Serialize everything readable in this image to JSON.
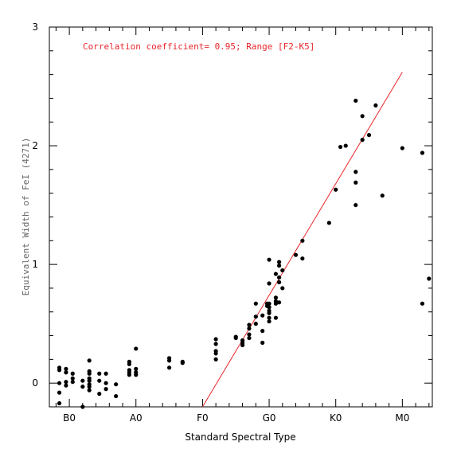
{
  "chart_data": {
    "type": "scatter",
    "title": "",
    "xlabel": "Standard Spectral Type",
    "ylabel": "Equivalent Width of FeI (4271)",
    "annotation": "Correlation coefficient= 0.95; Range [F2-K5]",
    "x_ticks": [
      {
        "value": 10,
        "label": "B0"
      },
      {
        "value": 20,
        "label": "A0"
      },
      {
        "value": 30,
        "label": "F0"
      },
      {
        "value": 40,
        "label": "G0"
      },
      {
        "value": 50,
        "label": "K0"
      },
      {
        "value": 60,
        "label": "M0"
      }
    ],
    "y_ticks": [
      {
        "value": 0,
        "label": "0"
      },
      {
        "value": 1,
        "label": "1"
      },
      {
        "value": 2,
        "label": "2"
      },
      {
        "value": 3,
        "label": "3"
      }
    ],
    "xlim": [
      7.0,
      64.5
    ],
    "ylim": [
      -0.2,
      3.0
    ],
    "grid": false,
    "colors": {
      "points": "#000000",
      "fit": "#e8262b",
      "annotation": "#e8262b"
    },
    "fit_line": {
      "x": [
        30.0,
        60.0
      ],
      "y": [
        -0.2,
        2.62
      ]
    },
    "points": [
      {
        "x": 8.5,
        "y": 0.13
      },
      {
        "x": 8.5,
        "y": 0.11
      },
      {
        "x": 8.5,
        "y": 0.0
      },
      {
        "x": 8.5,
        "y": -0.08
      },
      {
        "x": 8.5,
        "y": -0.17
      },
      {
        "x": 9.5,
        "y": 0.12
      },
      {
        "x": 9.5,
        "y": 0.09
      },
      {
        "x": 9.5,
        "y": 0.01
      },
      {
        "x": 9.5,
        "y": -0.02
      },
      {
        "x": 10.5,
        "y": 0.08
      },
      {
        "x": 10.5,
        "y": 0.04
      },
      {
        "x": 10.5,
        "y": 0.01
      },
      {
        "x": 12.0,
        "y": 0.02
      },
      {
        "x": 12.0,
        "y": -0.03
      },
      {
        "x": 12.0,
        "y": -0.2
      },
      {
        "x": 13.0,
        "y": 0.19
      },
      {
        "x": 13.0,
        "y": 0.1
      },
      {
        "x": 13.0,
        "y": 0.08
      },
      {
        "x": 13.0,
        "y": 0.04
      },
      {
        "x": 13.0,
        "y": 0.02
      },
      {
        "x": 13.0,
        "y": -0.01
      },
      {
        "x": 13.0,
        "y": -0.03
      },
      {
        "x": 13.0,
        "y": -0.06
      },
      {
        "x": 14.5,
        "y": 0.08
      },
      {
        "x": 14.5,
        "y": 0.02
      },
      {
        "x": 14.5,
        "y": -0.09
      },
      {
        "x": 15.5,
        "y": 0.08
      },
      {
        "x": 15.5,
        "y": 0.0
      },
      {
        "x": 15.5,
        "y": -0.05
      },
      {
        "x": 17.0,
        "y": -0.01
      },
      {
        "x": 17.0,
        "y": -0.11
      },
      {
        "x": 19.0,
        "y": 0.18
      },
      {
        "x": 19.0,
        "y": 0.16
      },
      {
        "x": 19.0,
        "y": 0.11
      },
      {
        "x": 19.0,
        "y": 0.09
      },
      {
        "x": 19.0,
        "y": 0.07
      },
      {
        "x": 20.0,
        "y": 0.29
      },
      {
        "x": 20.0,
        "y": 0.12
      },
      {
        "x": 20.0,
        "y": 0.09
      },
      {
        "x": 20.0,
        "y": 0.07
      },
      {
        "x": 25.0,
        "y": 0.21
      },
      {
        "x": 25.0,
        "y": 0.19
      },
      {
        "x": 25.0,
        "y": 0.13
      },
      {
        "x": 27.0,
        "y": 0.18
      },
      {
        "x": 27.0,
        "y": 0.17
      },
      {
        "x": 32.0,
        "y": 0.37
      },
      {
        "x": 32.0,
        "y": 0.33
      },
      {
        "x": 32.0,
        "y": 0.27
      },
      {
        "x": 32.0,
        "y": 0.25
      },
      {
        "x": 32.0,
        "y": 0.2
      },
      {
        "x": 35.0,
        "y": 0.39
      },
      {
        "x": 35.0,
        "y": 0.38
      },
      {
        "x": 36.0,
        "y": 0.36
      },
      {
        "x": 36.0,
        "y": 0.34
      },
      {
        "x": 36.0,
        "y": 0.32
      },
      {
        "x": 37.0,
        "y": 0.49
      },
      {
        "x": 37.0,
        "y": 0.46
      },
      {
        "x": 37.0,
        "y": 0.41
      },
      {
        "x": 37.0,
        "y": 0.38
      },
      {
        "x": 38.0,
        "y": 0.67
      },
      {
        "x": 38.0,
        "y": 0.56
      },
      {
        "x": 38.0,
        "y": 0.5
      },
      {
        "x": 39.0,
        "y": 0.57
      },
      {
        "x": 39.0,
        "y": 0.44
      },
      {
        "x": 39.0,
        "y": 0.34
      },
      {
        "x": 39.7,
        "y": 0.67
      },
      {
        "x": 39.7,
        "y": 0.65
      },
      {
        "x": 40.0,
        "y": 1.04
      },
      {
        "x": 40.0,
        "y": 0.84
      },
      {
        "x": 40.0,
        "y": 0.67
      },
      {
        "x": 40.0,
        "y": 0.64
      },
      {
        "x": 40.0,
        "y": 0.61
      },
      {
        "x": 40.0,
        "y": 0.59
      },
      {
        "x": 40.0,
        "y": 0.55
      },
      {
        "x": 40.0,
        "y": 0.52
      },
      {
        "x": 41.0,
        "y": 0.92
      },
      {
        "x": 41.0,
        "y": 0.72
      },
      {
        "x": 41.0,
        "y": 0.69
      },
      {
        "x": 41.0,
        "y": 0.67
      },
      {
        "x": 41.0,
        "y": 0.55
      },
      {
        "x": 41.5,
        "y": 1.02
      },
      {
        "x": 41.5,
        "y": 0.99
      },
      {
        "x": 41.5,
        "y": 0.89
      },
      {
        "x": 41.5,
        "y": 0.85
      },
      {
        "x": 41.5,
        "y": 0.68
      },
      {
        "x": 42.0,
        "y": 0.95
      },
      {
        "x": 42.0,
        "y": 0.8
      },
      {
        "x": 44.0,
        "y": 1.08
      },
      {
        "x": 45.0,
        "y": 1.2
      },
      {
        "x": 45.0,
        "y": 1.05
      },
      {
        "x": 49.0,
        "y": 1.35
      },
      {
        "x": 50.0,
        "y": 1.63
      },
      {
        "x": 50.7,
        "y": 1.99
      },
      {
        "x": 51.5,
        "y": 2.0
      },
      {
        "x": 53.0,
        "y": 2.38
      },
      {
        "x": 53.0,
        "y": 1.78
      },
      {
        "x": 53.0,
        "y": 1.69
      },
      {
        "x": 53.0,
        "y": 1.5
      },
      {
        "x": 54.0,
        "y": 2.25
      },
      {
        "x": 54.0,
        "y": 2.05
      },
      {
        "x": 55.0,
        "y": 2.09
      },
      {
        "x": 56.0,
        "y": 2.34
      },
      {
        "x": 57.0,
        "y": 1.58
      },
      {
        "x": 60.0,
        "y": 1.98
      },
      {
        "x": 63.0,
        "y": 1.94
      },
      {
        "x": 63.0,
        "y": 0.67
      },
      {
        "x": 64.0,
        "y": 0.88
      }
    ]
  }
}
